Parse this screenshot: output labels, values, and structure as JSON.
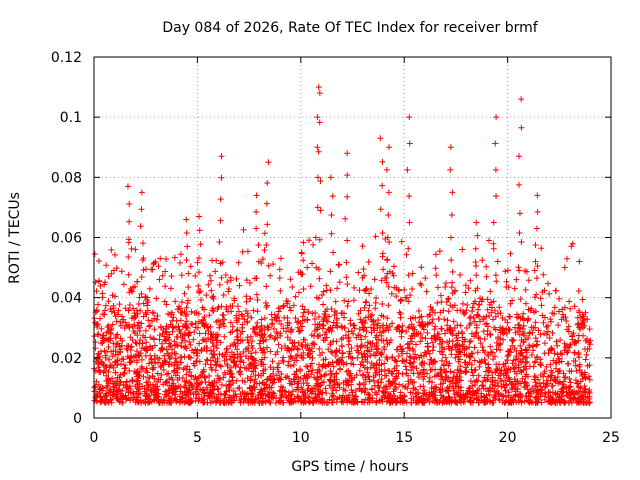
{
  "chart_data": {
    "type": "scatter",
    "title": "Day 084 of 2026, Rate Of TEC Index for receiver brmf",
    "xlabel": "GPS time / hours",
    "ylabel": "ROTI / TECUs",
    "xlim": [
      0,
      25
    ],
    "ylim": [
      0,
      0.12
    ],
    "x_ticks": [
      0,
      5,
      10,
      15,
      20,
      25
    ],
    "x_tick_labels": [
      "0",
      "5",
      "10",
      "15",
      "20",
      "25"
    ],
    "y_ticks": [
      0,
      0.02,
      0.04,
      0.06,
      0.08,
      0.1,
      0.12
    ],
    "y_tick_labels": [
      "0",
      "0.02",
      "0.04",
      "0.06",
      "0.08",
      "0.1",
      "0.12"
    ],
    "grid": true,
    "marker": "+",
    "marker_color": "#ff0000",
    "x_range_covered": [
      0,
      24
    ],
    "typical_range": [
      0.005,
      0.03
    ],
    "series": [
      {
        "name": "ROTI",
        "x": [
          1.7,
          2.3,
          6.1,
          8.4,
          10.8,
          10.9,
          12.2,
          13.9,
          15.2,
          17.3,
          19.4,
          20.6,
          4.5,
          5.1,
          7.9,
          11.5,
          14.2,
          18.5,
          21.4,
          23.7
        ],
        "y": [
          0.077,
          0.075,
          0.087,
          0.085,
          0.11,
          0.108,
          0.088,
          0.093,
          0.1,
          0.09,
          0.1,
          0.106,
          0.066,
          0.067,
          0.074,
          0.08,
          0.09,
          0.065,
          0.074,
          0.035
        ]
      }
    ]
  }
}
